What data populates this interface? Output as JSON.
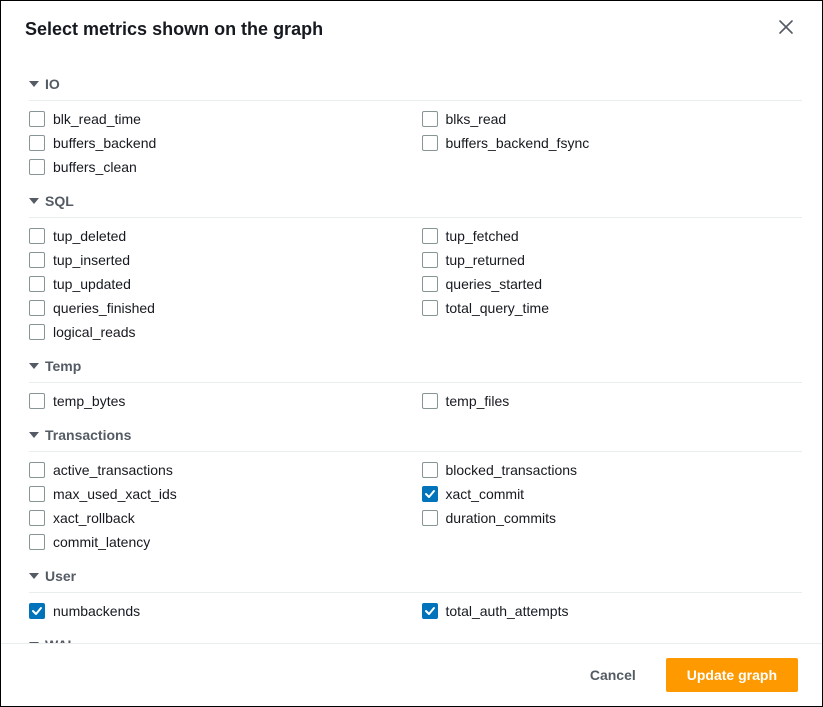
{
  "modal": {
    "title": "Select metrics shown on the graph",
    "close_aria": "Close"
  },
  "colors": {
    "accent": "#0073bb",
    "primary_button": "#ff9900",
    "text": "#16191f",
    "muted": "#545b64",
    "border": "#eaeded",
    "checkbox_border": "#879596"
  },
  "sections": [
    {
      "id": "io",
      "title": "IO",
      "metrics": [
        {
          "id": "blk_read_time",
          "label": "blk_read_time",
          "checked": false
        },
        {
          "id": "blks_read",
          "label": "blks_read",
          "checked": false
        },
        {
          "id": "buffers_backend",
          "label": "buffers_backend",
          "checked": false
        },
        {
          "id": "buffers_backend_fsync",
          "label": "buffers_backend_fsync",
          "checked": false
        },
        {
          "id": "buffers_clean",
          "label": "buffers_clean",
          "checked": false
        }
      ]
    },
    {
      "id": "sql",
      "title": "SQL",
      "metrics": [
        {
          "id": "tup_deleted",
          "label": "tup_deleted",
          "checked": false
        },
        {
          "id": "tup_fetched",
          "label": "tup_fetched",
          "checked": false
        },
        {
          "id": "tup_inserted",
          "label": "tup_inserted",
          "checked": false
        },
        {
          "id": "tup_returned",
          "label": "tup_returned",
          "checked": false
        },
        {
          "id": "tup_updated",
          "label": "tup_updated",
          "checked": false
        },
        {
          "id": "queries_started",
          "label": "queries_started",
          "checked": false
        },
        {
          "id": "queries_finished",
          "label": "queries_finished",
          "checked": false
        },
        {
          "id": "total_query_time",
          "label": "total_query_time",
          "checked": false
        },
        {
          "id": "logical_reads",
          "label": "logical_reads",
          "checked": false
        }
      ]
    },
    {
      "id": "temp",
      "title": "Temp",
      "metrics": [
        {
          "id": "temp_bytes",
          "label": "temp_bytes",
          "checked": false
        },
        {
          "id": "temp_files",
          "label": "temp_files",
          "checked": false
        }
      ]
    },
    {
      "id": "transactions",
      "title": "Transactions",
      "metrics": [
        {
          "id": "active_transactions",
          "label": "active_transactions",
          "checked": false
        },
        {
          "id": "blocked_transactions",
          "label": "blocked_transactions",
          "checked": false
        },
        {
          "id": "max_used_xact_ids",
          "label": "max_used_xact_ids",
          "checked": false
        },
        {
          "id": "xact_commit",
          "label": "xact_commit",
          "checked": true
        },
        {
          "id": "xact_rollback",
          "label": "xact_rollback",
          "checked": false
        },
        {
          "id": "duration_commits",
          "label": "duration_commits",
          "checked": false
        },
        {
          "id": "commit_latency",
          "label": "commit_latency",
          "checked": false
        }
      ]
    },
    {
      "id": "user",
      "title": "User",
      "metrics": [
        {
          "id": "numbackends",
          "label": "numbackends",
          "checked": true
        },
        {
          "id": "total_auth_attempts",
          "label": "total_auth_attempts",
          "checked": true
        }
      ]
    },
    {
      "id": "wal",
      "title": "WAL",
      "metrics": []
    }
  ],
  "footer": {
    "cancel_label": "Cancel",
    "update_label": "Update graph"
  }
}
